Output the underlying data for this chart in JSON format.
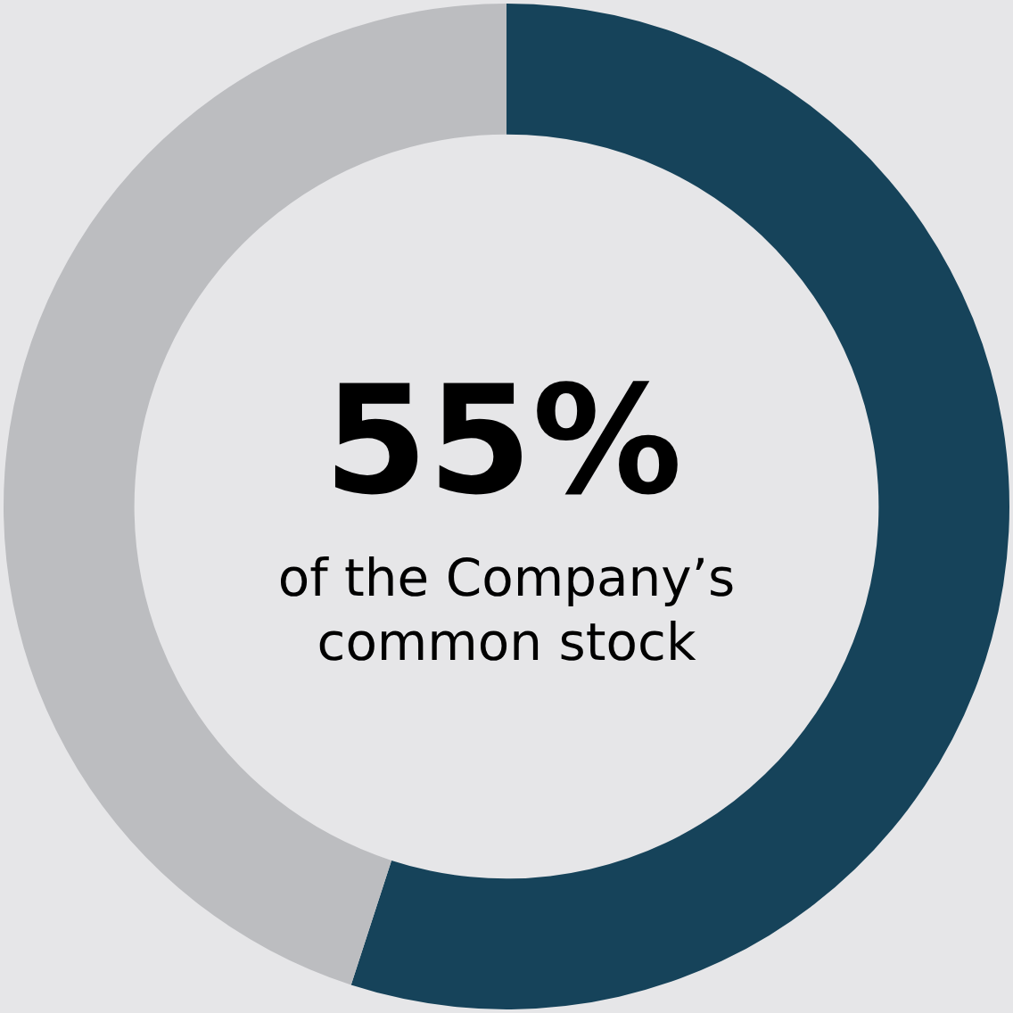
{
  "chart_data": {
    "type": "donut",
    "categories": [
      null,
      null
    ],
    "values": [
      55,
      45
    ],
    "colors": [
      "#16435a",
      "#bcbdc0"
    ],
    "annotations": [
      "55%",
      "of the Company’s common stock"
    ]
  }
}
